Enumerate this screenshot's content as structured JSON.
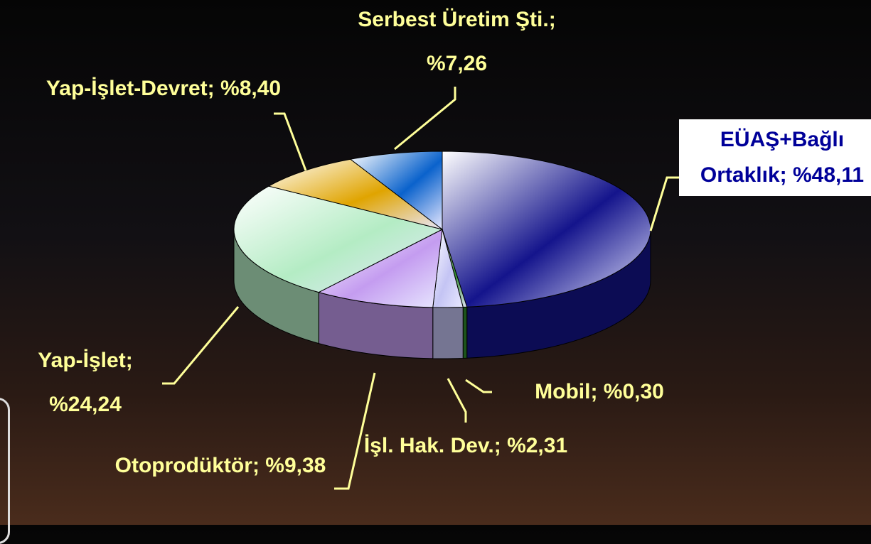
{
  "chart_data": {
    "type": "pie3d",
    "categories": [
      "EÜAŞ+Bağlı Ortaklık",
      "Mobil",
      "İşl. Hak. Dev.",
      "Otoprodüktör",
      "Yap-İşlet",
      "Yap-İşlet-Devret",
      "Serbest Üretim Şti."
    ],
    "values": [
      48.11,
      0.3,
      2.31,
      9.38,
      24.24,
      8.4,
      7.26
    ],
    "value_labels": [
      "%48,11",
      "%0,30",
      "%2,31",
      "%9,38",
      "%24,24",
      "%8,40",
      "%7,26"
    ],
    "label_separator": ";",
    "colors": [
      "#14148c",
      "#2e8b2e",
      "#c4c4f4",
      "#c49cf0",
      "#b4ecc4",
      "#e0a400",
      "#0a62cc"
    ]
  }
}
